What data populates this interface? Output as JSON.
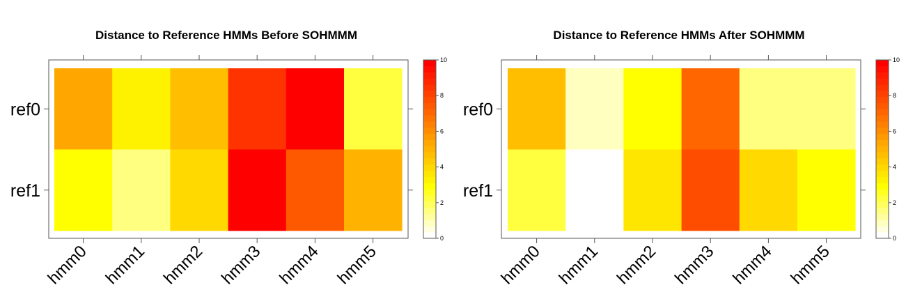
{
  "chart_data": [
    {
      "type": "heatmap",
      "title": "Distance to Reference HMMs Before SOHMMM",
      "x_categories": [
        "hmm0",
        "hmm1",
        "hmm2",
        "hmm3",
        "hmm4",
        "hmm5"
      ],
      "y_categories": [
        "ref0",
        "ref1"
      ],
      "values": [
        [
          5.3,
          3.3,
          4.7,
          8.3,
          9.9,
          2.4
        ],
        [
          3.1,
          1.4,
          4.1,
          9.9,
          7.5,
          5.0
        ]
      ],
      "colorbar": {
        "range": [
          0,
          10
        ],
        "ticks": [
          0,
          2,
          4,
          6,
          8,
          10
        ]
      }
    },
    {
      "type": "heatmap",
      "title": "Distance to Reference HMMs After SOHMMM",
      "x_categories": [
        "hmm0",
        "hmm1",
        "hmm2",
        "hmm3",
        "hmm4",
        "hmm5"
      ],
      "y_categories": [
        "ref0",
        "ref1"
      ],
      "values": [
        [
          4.6,
          0.9,
          2.9,
          6.9,
          1.6,
          1.6
        ],
        [
          2.4,
          0.2,
          3.6,
          7.9,
          4.1,
          2.8
        ]
      ],
      "colorbar": {
        "range": [
          0,
          10
        ],
        "ticks": [
          0,
          2,
          4,
          6,
          8,
          10
        ]
      }
    }
  ],
  "colors": {
    "scale": [
      "#FFFFFF",
      "#FFFFE0",
      "#FFFFBF",
      "#FFFF9F",
      "#FFFF80",
      "#FFFF60",
      "#FFFF40",
      "#FFFF20",
      "#FFFF00",
      "#FFF200",
      "#FFE600",
      "#FFD900",
      "#FFCC00",
      "#FFBF00",
      "#FFB300",
      "#FFA600",
      "#FF9900",
      "#FF8C00",
      "#FF8000",
      "#FF7300",
      "#FF6600",
      "#FF5900",
      "#FF4D00",
      "#FF4000",
      "#FF3300",
      "#FF2600",
      "#FF1A00",
      "#FF0D00",
      "#FF0000"
    ]
  }
}
